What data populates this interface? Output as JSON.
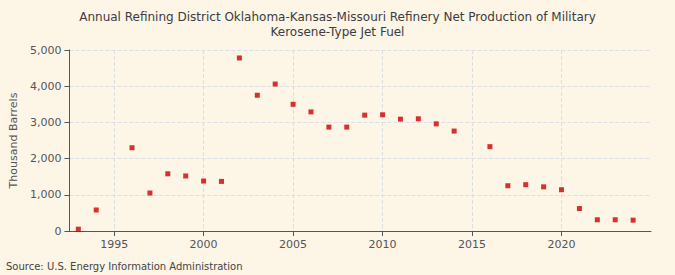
{
  "chart_data": {
    "type": "scatter",
    "title": "Annual Refining District Oklahoma-Kansas-Missouri Refinery Net Production of Military\nKerosene-Type Jet Fuel",
    "ylabel": "Thousand Barrels",
    "source": "Source: U.S. Energy Information Administration",
    "background_color": "#fdf5e6",
    "color": "#cc0000",
    "marker": "square",
    "x": [
      1993,
      1994,
      1996,
      1997,
      1998,
      1999,
      2000,
      2001,
      2002,
      2003,
      2004,
      2005,
      2006,
      2007,
      2008,
      2009,
      2010,
      2011,
      2012,
      2013,
      2014,
      2016,
      2017,
      2018,
      2019,
      2020,
      2021,
      2022,
      2023,
      2024
    ],
    "values": [
      50,
      580,
      2300,
      1050,
      1580,
      1520,
      1380,
      1370,
      4780,
      3750,
      4060,
      3500,
      3290,
      2870,
      2870,
      3200,
      3210,
      3090,
      3100,
      2960,
      2760,
      2330,
      1250,
      1280,
      1220,
      1140,
      620,
      310,
      310,
      300
    ],
    "xlim": [
      1992.5,
      2025
    ],
    "xticks": [
      1995,
      2000,
      2005,
      2010,
      2015,
      2020
    ],
    "ylim": [
      0,
      5000
    ],
    "yticks": [
      0,
      {
        "value": 1000,
        "label": "1,000"
      },
      {
        "value": 2000,
        "label": "2,000"
      },
      {
        "value": 3000,
        "label": "3,000"
      },
      {
        "value": 4000,
        "label": "4,000"
      },
      {
        "value": 5000,
        "label": "5,000"
      }
    ],
    "grid": true
  }
}
